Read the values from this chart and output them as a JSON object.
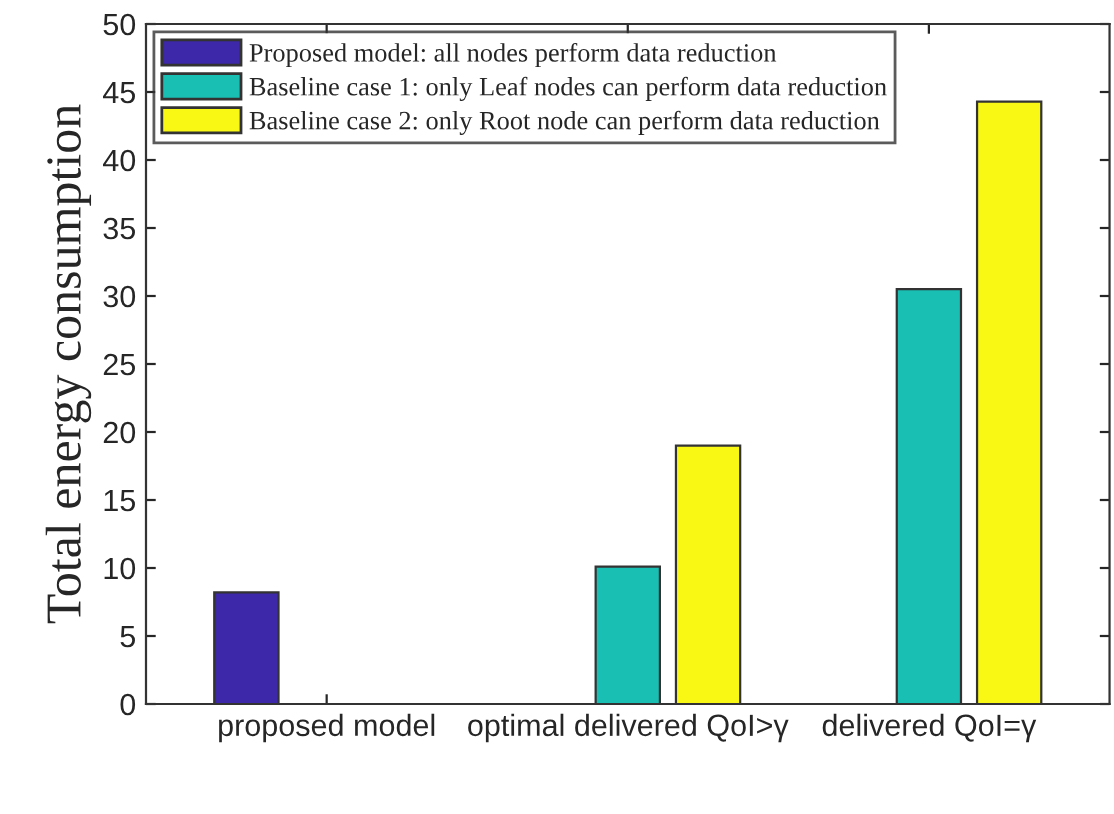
{
  "chart_data": {
    "type": "bar",
    "ylabel": "Total energy consumption",
    "categories": [
      "proposed model",
      "optimal delivered QoI>γ",
      "delivered QoI=γ"
    ],
    "series": [
      {
        "name": "Proposed model: all nodes perform data reduction",
        "color": "#3c28a8",
        "values": [
          8.2,
          null,
          null
        ]
      },
      {
        "name": "Baseline case 1: only Leaf nodes can perform data reduction",
        "color": "#1abfb4",
        "values": [
          null,
          10.1,
          30.5
        ]
      },
      {
        "name": "Baseline case 2: only Root node can perform data reduction",
        "color": "#f8f814",
        "values": [
          null,
          19.0,
          44.3
        ]
      }
    ],
    "ylim": [
      0,
      50
    ],
    "yticks": [
      0,
      5,
      10,
      15,
      20,
      25,
      30,
      35,
      40,
      45,
      50
    ],
    "grid": false,
    "legend": "top left"
  }
}
